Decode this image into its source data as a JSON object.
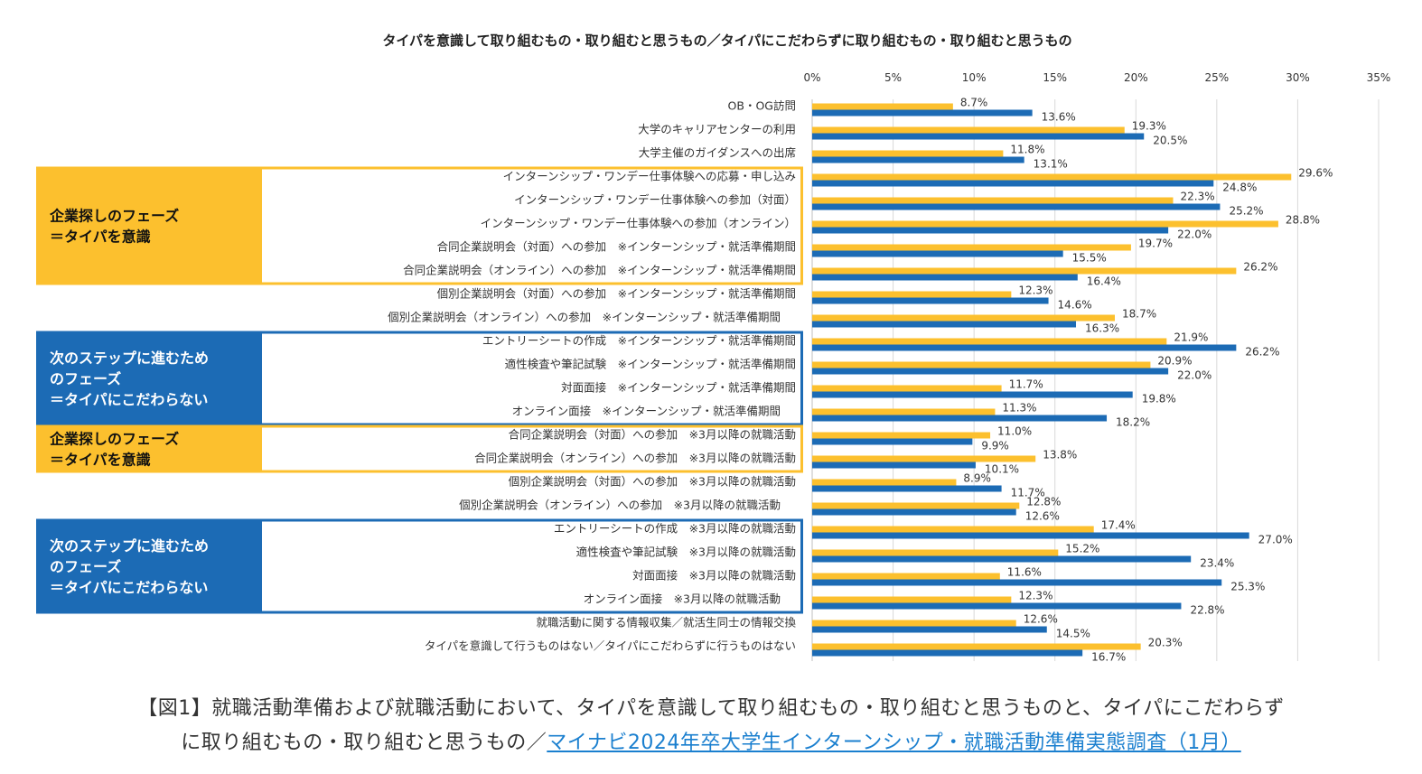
{
  "chart_data": {
    "type": "bar",
    "orientation": "horizontal",
    "title": "タイパを意識して取り組むもの・取り組むと思うもの／タイパにこだわらずに取り組むもの・取り組むと思うもの",
    "xlim": [
      0,
      35
    ],
    "x_ticks": [
      "0%",
      "5%",
      "10%",
      "15%",
      "20%",
      "25%",
      "30%",
      "35%"
    ],
    "grid": true,
    "colors": {
      "yellow": "#FCC02E",
      "blue": "#1C6BB5"
    },
    "categories": [
      "OB・OG訪問",
      "大学のキャリアセンターの利用",
      "大学主催のガイダンスへの出席",
      "インターンシップ・ワンデー仕事体験への応募・申し込み",
      "インターンシップ・ワンデー仕事体験への参加（対面）",
      "インターンシップ・ワンデー仕事体験への参加（オンライン）",
      "合同企業説明会（対面）への参加　※インターンシップ・就活準備期間",
      "合同企業説明会（オンライン）への参加　※インターンシップ・就活準備期間",
      "個別企業説明会（対面）への参加　※インターンシップ・就活準備期間",
      "個別企業説明会（オンライン）への参加　※インターンシップ・就活準備期間",
      "エントリーシートの作成　※インターンシップ・就活準備期間",
      "適性検査や筆記試験　※インターンシップ・就活準備期間",
      "対面面接　※インターンシップ・就活準備期間",
      "オンライン面接　※インターンシップ・就活準備期間",
      "合同企業説明会（対面）への参加　※3月以降の就職活動",
      "合同企業説明会（オンライン）への参加　※3月以降の就職活動",
      "個別企業説明会（対面）への参加　※3月以降の就職活動",
      "個別企業説明会（オンライン）への参加　※3月以降の就職活動",
      "エントリーシートの作成　※3月以降の就職活動",
      "適性検査や筆記試験　※3月以降の就職活動",
      "対面面接　※3月以降の就職活動",
      "オンライン面接　※3月以降の就職活動",
      "就職活動に関する情報収集／就活生同士の情報交換",
      "タイパを意識して行うものはない／タイパにこだわらずに行うものはない"
    ],
    "series": [
      {
        "color": "#FCC02E",
        "values": [
          8.7,
          19.3,
          11.8,
          29.6,
          22.3,
          28.8,
          19.7,
          26.2,
          12.3,
          18.7,
          21.9,
          20.9,
          11.7,
          11.3,
          11.0,
          13.8,
          8.9,
          12.8,
          17.4,
          15.2,
          11.6,
          12.3,
          12.6,
          20.3
        ],
        "labels": [
          "8.7%",
          "19.3%",
          "11.8%",
          "29.6%",
          "22.3%",
          "28.8%",
          "19.7%",
          "26.2%",
          "12.3%",
          "18.7%",
          "21.9%",
          "20.9%",
          "11.7%",
          "11.3%",
          "11.0%",
          "13.8%",
          "8.9%",
          "12.8%",
          "17.4%",
          "15.2%",
          "11.6%",
          "12.3%",
          "12.6%",
          "20.3%"
        ]
      },
      {
        "color": "#1C6BB5",
        "values": [
          13.6,
          20.5,
          13.1,
          24.8,
          25.2,
          22.0,
          15.5,
          16.4,
          14.6,
          16.3,
          26.2,
          22.0,
          19.8,
          18.2,
          9.9,
          10.1,
          11.7,
          12.6,
          27.0,
          23.4,
          25.3,
          22.8,
          14.5,
          16.7
        ],
        "labels": [
          "13.6%",
          "20.5%",
          "13.1%",
          "24.8%",
          "25.2%",
          "22.0%",
          "15.5%",
          "16.4%",
          "14.6%",
          "16.3%",
          "26.2%",
          "22.0%",
          "19.8%",
          "18.2%",
          "9.9%",
          "10.1%",
          "11.7%",
          "12.6%",
          "27.0%",
          "23.4%",
          "25.3%",
          "22.8%",
          "14.5%",
          "16.7%"
        ]
      }
    ],
    "phases": [
      {
        "style": "yellow",
        "rows": [
          3,
          7
        ],
        "line1": "企業探しのフェーズ",
        "line2": "＝タイパを意識",
        "line3": ""
      },
      {
        "style": "blue",
        "rows": [
          10,
          13
        ],
        "line1": "次のステップに進むため",
        "line2": "のフェーズ",
        "line3": "＝タイパにこだわらない"
      },
      {
        "style": "yellow",
        "rows": [
          14,
          15
        ],
        "line1": "企業探しのフェーズ",
        "line2": "＝タイパを意識",
        "line3": ""
      },
      {
        "style": "blue",
        "rows": [
          18,
          21
        ],
        "line1": "次のステップに進むため",
        "line2": "のフェーズ",
        "line3": "＝タイパにこだわらない"
      }
    ]
  },
  "caption": {
    "text": "【図1】就職活動準備および就職活動において、タイパを意識して取り組むもの・取り組むと思うものと、タイパにこだわらず",
    "text2": "に取り組むもの・取り組むと思うもの／",
    "link": "マイナビ2024年卒大学生インターンシップ・就職活動準備実態調査（1月）"
  }
}
